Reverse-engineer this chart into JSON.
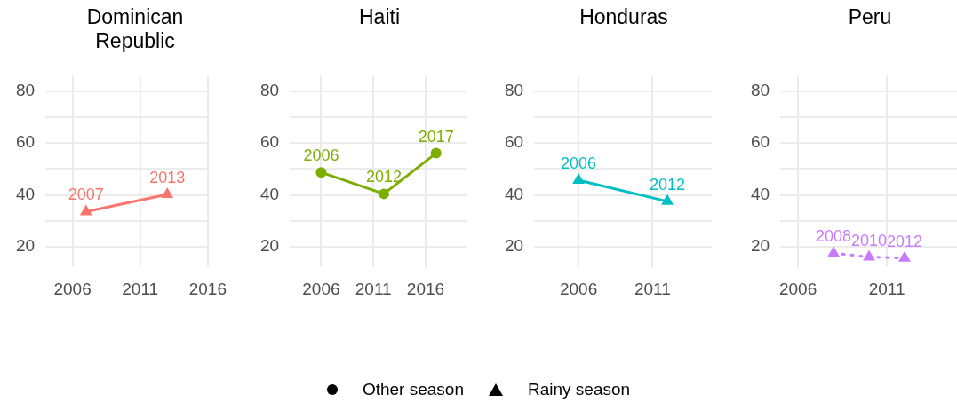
{
  "chart_data": [
    {
      "type": "line",
      "title": "Dominican Republic",
      "xlim": [
        2004,
        2016
      ],
      "xticks": [
        2006,
        2011,
        2016
      ],
      "ylim": [
        12,
        86
      ],
      "yticks": [
        20,
        {
          "value": 30,
          "label": null
        },
        40,
        {
          "value": 50,
          "label": null
        },
        60,
        {
          "value": 70,
          "label": null
        },
        80
      ],
      "grid": true,
      "legend": "bottom",
      "series": [
        {
          "name": "Rainy season",
          "color": "#f8766d",
          "marker": "triangle",
          "line_style": "solid",
          "x": [
            2007,
            2013
          ],
          "values": [
            33.5,
            40.2
          ]
        }
      ],
      "annotations": [
        {
          "text": "2007",
          "x": 2007,
          "y": 33.5
        },
        {
          "text": "2013",
          "x": 2013,
          "y": 40.2
        }
      ]
    },
    {
      "type": "line",
      "title": "Haiti",
      "xlim": [
        2003,
        2020
      ],
      "xticks": [
        2006,
        2011,
        2016
      ],
      "ylim": [
        12,
        86
      ],
      "yticks": [
        20,
        {
          "value": 30,
          "label": null
        },
        40,
        {
          "value": 50,
          "label": null
        },
        60,
        {
          "value": 70,
          "label": null
        },
        80
      ],
      "grid": true,
      "legend": "bottom",
      "series": [
        {
          "name": "Other season",
          "color": "#7cae00",
          "marker": "circle",
          "line_style": "solid",
          "x": [
            2006,
            2012,
            2017
          ],
          "values": [
            48.7,
            40.4,
            56.1
          ]
        }
      ],
      "annotations": [
        {
          "text": "2006",
          "x": 2006,
          "y": 48.7
        },
        {
          "text": "2012",
          "x": 2012,
          "y": 40.4
        },
        {
          "text": "2017",
          "x": 2017,
          "y": 56.1
        }
      ]
    },
    {
      "type": "line",
      "title": "Honduras",
      "xlim": [
        2003,
        2015
      ],
      "xticks": [
        2006,
        2011
      ],
      "ylim": [
        12,
        86
      ],
      "yticks": [
        20,
        {
          "value": 30,
          "label": null
        },
        40,
        {
          "value": 50,
          "label": null
        },
        60,
        {
          "value": 70,
          "label": null
        },
        80
      ],
      "grid": true,
      "series": [
        {
          "color": "#00bfc4",
          "marker": "triangle",
          "line_style": "solid",
          "x": [
            2006,
            2012
          ],
          "values": [
            45.7,
            37.5
          ]
        }
      ],
      "annotations": [
        {
          "text": "2006",
          "x": 2006,
          "y": 45.7
        },
        {
          "text": "2012",
          "x": 2012,
          "y": 37.5
        }
      ]
    },
    {
      "type": "line",
      "title": "Peru",
      "xlim": [
        2005,
        2015
      ],
      "xticks": [
        2006,
        2011
      ],
      "ylim": [
        12,
        86
      ],
      "yticks": [
        20,
        {
          "value": 30,
          "label": null
        },
        40,
        {
          "value": 50,
          "label": null
        },
        60,
        {
          "value": 70,
          "label": null
        },
        80
      ],
      "grid": true,
      "series": [
        {
          "color": "#c77cff",
          "marker": "triangle",
          "line_style": "dotted",
          "x": [
            2008,
            2010,
            2012
          ],
          "values": [
            17.5,
            16.0,
            15.6
          ]
        }
      ],
      "annotations": [
        {
          "text": "2008",
          "x": 2008,
          "y": 17.5
        },
        {
          "text": "2010",
          "x": 2010,
          "y": 16.0
        },
        {
          "text": "2012",
          "x": 2012,
          "y": 15.6
        }
      ]
    }
  ]
}
